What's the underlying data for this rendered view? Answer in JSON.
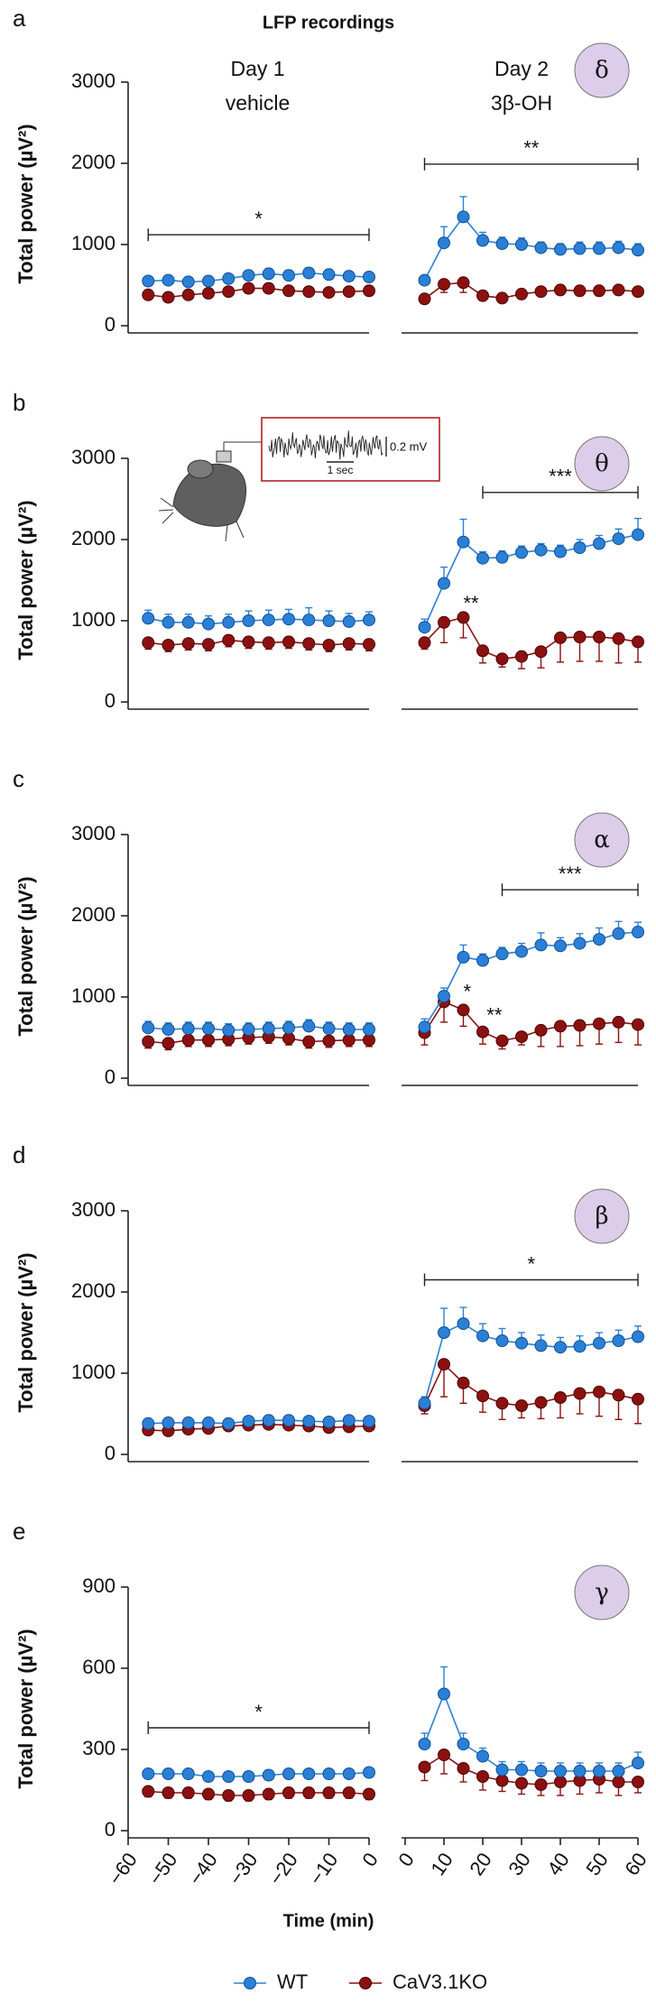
{
  "title": "LFP recordings",
  "xlabel": "Time (min)",
  "legend": [
    {
      "name": "WT",
      "color": "#2b80d6"
    },
    {
      "name": "CaV3.1KO",
      "color": "#8c1010"
    }
  ],
  "segments": [
    {
      "header": [
        "Day 1",
        "vehicle"
      ],
      "xlim": [
        -60,
        0
      ],
      "xticks": [
        {
          "value": -60,
          "label": "−60"
        },
        {
          "value": -50,
          "label": "−50"
        },
        {
          "value": -40,
          "label": "−40"
        },
        {
          "value": -30,
          "label": "−30"
        },
        {
          "value": -20,
          "label": "−20"
        },
        {
          "value": -10,
          "label": "−10"
        },
        0
      ],
      "x": [
        -55,
        -50,
        -45,
        -40,
        -35,
        -30,
        -25,
        -20,
        -15,
        -10,
        -5,
        0
      ]
    },
    {
      "header": [
        "Day 2",
        "3β-OH"
      ],
      "xlim": [
        0,
        60
      ],
      "xticks": [
        0,
        10,
        20,
        30,
        40,
        50,
        60
      ],
      "x": [
        5,
        10,
        15,
        20,
        25,
        30,
        35,
        40,
        45,
        50,
        55,
        60
      ]
    }
  ],
  "chart_data": [
    {
      "type": "line",
      "panel": "a",
      "symbol": "δ",
      "ylabel": "Total power (µV²)",
      "ylim": [
        0,
        3000
      ],
      "yticks": [
        0,
        1000,
        2000,
        3000
      ],
      "days": [
        {
          "series": [
            {
              "values": [
                550,
                560,
                540,
                550,
                580,
                620,
                640,
                620,
                650,
                630,
                610,
                600
              ],
              "errors": [
                50,
                50,
                50,
                50,
                50,
                60,
                60,
                60,
                60,
                60,
                50,
                50
              ]
            },
            {
              "values": [
                380,
                350,
                380,
                400,
                420,
                460,
                460,
                430,
                420,
                410,
                420,
                430
              ],
              "errors": [
                50,
                50,
                50,
                50,
                50,
                60,
                60,
                60,
                60,
                50,
                50,
                50
              ]
            }
          ],
          "annotations": [
            "*"
          ]
        },
        {
          "series": [
            {
              "values": [
                560,
                1020,
                1340,
                1050,
                1010,
                1000,
                960,
                940,
                950,
                950,
                960,
                930
              ],
              "errors": [
                60,
                200,
                250,
                100,
                80,
                80,
                70,
                70,
                80,
                80,
                80,
                80
              ]
            },
            {
              "values": [
                330,
                510,
                530,
                370,
                340,
                390,
                420,
                440,
                430,
                430,
                440,
                420
              ],
              "errors": [
                50,
                100,
                120,
                60,
                50,
                60,
                60,
                60,
                60,
                60,
                60,
                50
              ]
            }
          ],
          "annotations": [
            "**"
          ]
        }
      ]
    },
    {
      "type": "line",
      "panel": "b",
      "symbol": "θ",
      "ylabel": "Total power (µV²)",
      "ylim": [
        0,
        3000
      ],
      "yticks": [
        0,
        1000,
        2000,
        3000
      ],
      "inset": {
        "amplitude": "0.2 mV",
        "duration": "1 sec"
      },
      "days": [
        {
          "series": [
            {
              "values": [
                1030,
                980,
                980,
                960,
                980,
                1000,
                1010,
                1020,
                1010,
                1000,
                990,
                1010
              ],
              "errors": [
                100,
                100,
                100,
                100,
                100,
                120,
                120,
                120,
                150,
                120,
                100,
                100
              ]
            },
            {
              "values": [
                730,
                700,
                720,
                710,
                760,
                740,
                730,
                740,
                720,
                700,
                720,
                710
              ],
              "errors": [
                80,
                80,
                80,
                80,
                80,
                80,
                80,
                80,
                80,
                80,
                80,
                80
              ]
            }
          ],
          "annotations": []
        },
        {
          "series": [
            {
              "values": [
                920,
                1460,
                1970,
                1770,
                1780,
                1840,
                1870,
                1850,
                1900,
                1950,
                2010,
                2060
              ],
              "errors": [
                100,
                200,
                280,
                80,
                80,
                80,
                80,
                80,
                100,
                100,
                120,
                200
              ]
            },
            {
              "values": [
                730,
                980,
                1040,
                630,
                530,
                560,
                620,
                790,
                800,
                800,
                780,
                740
              ],
              "errors": [
                80,
                250,
                250,
                150,
                100,
                150,
                200,
                300,
                300,
                300,
                300,
                250
              ]
            }
          ],
          "annotations": [
            "**",
            "***"
          ]
        }
      ]
    },
    {
      "type": "line",
      "panel": "c",
      "symbol": "α",
      "ylabel": "Total power (µV²)",
      "ylim": [
        0,
        3000
      ],
      "yticks": [
        0,
        1000,
        2000,
        3000
      ],
      "days": [
        {
          "series": [
            {
              "values": [
                620,
                600,
                610,
                610,
                590,
                600,
                610,
                620,
                640,
                610,
                600,
                600
              ],
              "errors": [
                80,
                80,
                80,
                80,
                80,
                80,
                80,
                80,
                80,
                80,
                80,
                80
              ]
            },
            {
              "values": [
                450,
                430,
                470,
                470,
                480,
                500,
                510,
                490,
                450,
                460,
                470,
                470
              ],
              "errors": [
                80,
                80,
                80,
                80,
                80,
                80,
                80,
                80,
                80,
                80,
                80,
                80
              ]
            }
          ],
          "annotations": []
        },
        {
          "series": [
            {
              "values": [
                630,
                1010,
                1490,
                1450,
                1530,
                1560,
                1640,
                1630,
                1660,
                1710,
                1780,
                1800
              ],
              "errors": [
                100,
                100,
                150,
                80,
                80,
                100,
                150,
                100,
                120,
                140,
                150,
                120
              ]
            },
            {
              "values": [
                560,
                940,
                840,
                570,
                460,
                510,
                590,
                640,
                650,
                670,
                690,
                660
              ],
              "errors": [
                150,
                250,
                200,
                150,
                100,
                100,
                200,
                250,
                250,
                250,
                250,
                250
              ]
            }
          ],
          "annotations": [
            "*",
            "**",
            "***"
          ]
        }
      ]
    },
    {
      "type": "line",
      "panel": "d",
      "symbol": "β",
      "ylabel": "Total power (µV²)",
      "ylim": [
        0,
        3000
      ],
      "yticks": [
        0,
        1000,
        2000,
        3000
      ],
      "days": [
        {
          "series": [
            {
              "values": [
                380,
                390,
                390,
                390,
                380,
                410,
                420,
                420,
                410,
                400,
                420,
                410
              ],
              "errors": [
                40,
                40,
                40,
                40,
                40,
                40,
                40,
                40,
                40,
                40,
                40,
                40
              ]
            },
            {
              "values": [
                300,
                290,
                310,
                320,
                350,
                360,
                370,
                360,
                350,
                330,
                340,
                350
              ],
              "errors": [
                40,
                40,
                40,
                40,
                40,
                40,
                40,
                40,
                40,
                40,
                40,
                40
              ]
            }
          ],
          "annotations": []
        },
        {
          "series": [
            {
              "values": [
                630,
                1500,
                1610,
                1460,
                1400,
                1370,
                1340,
                1320,
                1330,
                1370,
                1400,
                1450
              ],
              "errors": [
                80,
                300,
                200,
                150,
                150,
                130,
                130,
                120,
                130,
                130,
                130,
                130
              ]
            },
            {
              "values": [
                600,
                1110,
                880,
                720,
                630,
                600,
                640,
                700,
                750,
                770,
                730,
                680
              ],
              "errors": [
                100,
                400,
                250,
                200,
                200,
                150,
                200,
                250,
                250,
                300,
                300,
                300
              ]
            }
          ],
          "annotations": [
            "*"
          ]
        }
      ]
    },
    {
      "type": "line",
      "panel": "e",
      "symbol": "γ",
      "ylabel": "Total power (µV²)",
      "ylim": [
        0,
        900
      ],
      "yticks": [
        0,
        300,
        600,
        900
      ],
      "days": [
        {
          "series": [
            {
              "values": [
                210,
                210,
                210,
                200,
                200,
                200,
                205,
                210,
                210,
                210,
                210,
                215
              ],
              "errors": [
                15,
                15,
                15,
                15,
                15,
                15,
                15,
                15,
                15,
                15,
                15,
                15
              ]
            },
            {
              "values": [
                145,
                140,
                140,
                135,
                130,
                130,
                135,
                140,
                140,
                140,
                140,
                135
              ],
              "errors": [
                20,
                20,
                20,
                20,
                20,
                20,
                20,
                20,
                20,
                20,
                20,
                20
              ]
            }
          ],
          "annotations": [
            "*"
          ]
        },
        {
          "series": [
            {
              "values": [
                320,
                505,
                320,
                275,
                225,
                225,
                220,
                220,
                220,
                220,
                220,
                250
              ],
              "errors": [
                40,
                100,
                40,
                30,
                30,
                30,
                30,
                30,
                30,
                30,
                30,
                40
              ]
            },
            {
              "values": [
                235,
                280,
                230,
                200,
                185,
                175,
                170,
                180,
                185,
                190,
                180,
                180
              ],
              "errors": [
                50,
                70,
                50,
                50,
                40,
                40,
                40,
                50,
                50,
                50,
                50,
                40
              ]
            }
          ],
          "annotations": []
        }
      ]
    }
  ]
}
